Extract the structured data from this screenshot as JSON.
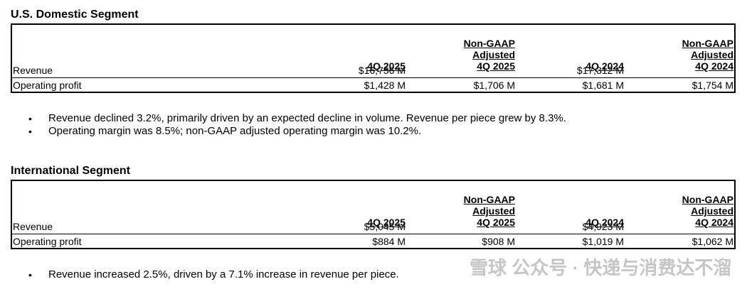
{
  "sections": [
    {
      "title": "U.S. Domestic Segment",
      "table": {
        "columns": [
          [
            "4Q 2025"
          ],
          [
            "Non-GAAP",
            "Adjusted",
            "4Q 2025"
          ],
          [
            "4Q 2024"
          ],
          [
            "Non-GAAP",
            "Adjusted",
            "4Q 2024"
          ]
        ],
        "rows": [
          {
            "label": "Revenue",
            "cells": [
              "$16,756 M",
              null,
              "$17,312 M",
              null
            ]
          },
          {
            "label": "Operating profit",
            "cells": [
              "$1,428 M",
              "$1,706 M",
              "$1,681 M",
              "$1,754 M"
            ]
          }
        ]
      },
      "bullets": [
        "Revenue declined 3.2%, primarily driven by an expected decline in volume. Revenue per piece grew by 8.3%.",
        "Operating margin was 8.5%; non-GAAP adjusted operating margin was 10.2%."
      ]
    },
    {
      "title": "International Segment",
      "table": {
        "columns": [
          [
            "4Q 2025"
          ],
          [
            "Non-GAAP",
            "Adjusted",
            "4Q 2025"
          ],
          [
            "4Q 2024"
          ],
          [
            "Non-GAAP",
            "Adjusted",
            "4Q 2024"
          ]
        ],
        "rows": [
          {
            "label": "Revenue",
            "cells": [
              "$5,045 M",
              null,
              "$4,923 M",
              null
            ]
          },
          {
            "label": "Operating profit",
            "cells": [
              "$884 M",
              "$908 M",
              "$1,019 M",
              "$1,062 M"
            ]
          }
        ]
      },
      "bullets": [
        "Revenue increased 2.5%, driven by a 7.1% increase in revenue per piece."
      ]
    }
  ],
  "watermark": "雪球 公众号 · 快递与消费达不溜"
}
